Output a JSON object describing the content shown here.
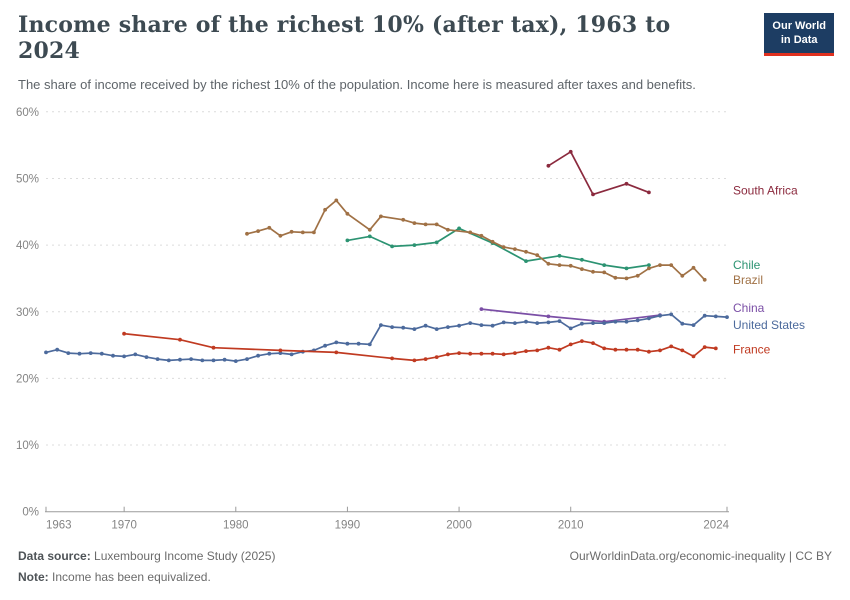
{
  "header": {
    "title": "Income share of the richest 10% (after tax), 1963 to 2024",
    "subtitle": "The share of income received by the richest 10% of the population. Income here is measured after taxes and benefits.",
    "logo": {
      "line1": "Our World",
      "line2": "in Data",
      "bg_color": "#1d3d63",
      "accent_color": "#e0311f"
    }
  },
  "chart_data": {
    "type": "line",
    "title": "Income share of the richest 10% (after tax), 1963 to 2024",
    "subtitle": "The share of income received by the richest 10% of the population. Income here is measured after taxes and benefits.",
    "xlabel": "",
    "ylabel": "",
    "xlim": [
      1963,
      2024
    ],
    "ylim": [
      0,
      60
    ],
    "grid": "horizontal-dashed",
    "legend_position": "right-end-labels",
    "x_ticks": [
      1963,
      1970,
      1980,
      1990,
      2000,
      2010,
      2024
    ],
    "y_ticks": [
      0,
      10,
      20,
      30,
      40,
      50,
      60
    ],
    "y_suffix": "%",
    "series": [
      {
        "name": "South Africa",
        "color": "#8b2a3e",
        "label_dy": -2,
        "points": [
          [
            2008,
            51.9
          ],
          [
            2010,
            54.0
          ],
          [
            2012,
            47.6
          ],
          [
            2015,
            49.2
          ],
          [
            2017,
            47.9
          ]
        ]
      },
      {
        "name": "Chile",
        "color": "#2c9372",
        "label_dy": 0,
        "points": [
          [
            1990,
            40.7
          ],
          [
            1992,
            41.3
          ],
          [
            1994,
            39.8
          ],
          [
            1996,
            40.0
          ],
          [
            1998,
            40.4
          ],
          [
            2000,
            42.5
          ],
          [
            2003,
            40.3
          ],
          [
            2006,
            37.6
          ],
          [
            2009,
            38.4
          ],
          [
            2011,
            37.8
          ],
          [
            2013,
            37.0
          ],
          [
            2015,
            36.5
          ],
          [
            2017,
            37.0
          ]
        ]
      },
      {
        "name": "Brazil",
        "color": "#a07145",
        "label_dy": 0,
        "points": [
          [
            1981,
            41.7
          ],
          [
            1982,
            42.1
          ],
          [
            1983,
            42.6
          ],
          [
            1984,
            41.4
          ],
          [
            1985,
            42.0
          ],
          [
            1986,
            41.9
          ],
          [
            1987,
            41.9
          ],
          [
            1988,
            45.3
          ],
          [
            1989,
            46.7
          ],
          [
            1990,
            44.7
          ],
          [
            1992,
            42.3
          ],
          [
            1993,
            44.3
          ],
          [
            1995,
            43.8
          ],
          [
            1996,
            43.3
          ],
          [
            1997,
            43.1
          ],
          [
            1998,
            43.1
          ],
          [
            1999,
            42.3
          ],
          [
            2001,
            41.9
          ],
          [
            2002,
            41.4
          ],
          [
            2003,
            40.5
          ],
          [
            2004,
            39.7
          ],
          [
            2005,
            39.4
          ],
          [
            2006,
            39.0
          ],
          [
            2007,
            38.5
          ],
          [
            2008,
            37.2
          ],
          [
            2009,
            37.0
          ],
          [
            2010,
            36.9
          ],
          [
            2011,
            36.4
          ],
          [
            2012,
            36.0
          ],
          [
            2013,
            35.9
          ],
          [
            2014,
            35.1
          ],
          [
            2015,
            35.0
          ],
          [
            2016,
            35.4
          ],
          [
            2017,
            36.5
          ],
          [
            2018,
            37.0
          ],
          [
            2019,
            37.0
          ],
          [
            2020,
            35.4
          ],
          [
            2021,
            36.6
          ],
          [
            2022,
            34.8
          ]
        ]
      },
      {
        "name": "China",
        "color": "#7b4fa6",
        "label_dy": -7,
        "points": [
          [
            2002,
            30.4
          ],
          [
            2008,
            29.3
          ],
          [
            2013,
            28.5
          ],
          [
            2018,
            29.5
          ]
        ]
      },
      {
        "name": "United States",
        "color": "#4c6a9c",
        "label_dy": 8,
        "points": [
          [
            1963,
            23.9
          ],
          [
            1964,
            24.3
          ],
          [
            1965,
            23.8
          ],
          [
            1966,
            23.7
          ],
          [
            1967,
            23.8
          ],
          [
            1968,
            23.7
          ],
          [
            1969,
            23.4
          ],
          [
            1970,
            23.3
          ],
          [
            1971,
            23.6
          ],
          [
            1972,
            23.2
          ],
          [
            1973,
            22.9
          ],
          [
            1974,
            22.7
          ],
          [
            1975,
            22.8
          ],
          [
            1976,
            22.9
          ],
          [
            1977,
            22.7
          ],
          [
            1978,
            22.7
          ],
          [
            1979,
            22.8
          ],
          [
            1980,
            22.6
          ],
          [
            1981,
            22.9
          ],
          [
            1982,
            23.4
          ],
          [
            1983,
            23.7
          ],
          [
            1984,
            23.8
          ],
          [
            1985,
            23.6
          ],
          [
            1986,
            24.0
          ],
          [
            1987,
            24.2
          ],
          [
            1988,
            24.9
          ],
          [
            1989,
            25.4
          ],
          [
            1990,
            25.2
          ],
          [
            1991,
            25.2
          ],
          [
            1992,
            25.1
          ],
          [
            1993,
            28.0
          ],
          [
            1994,
            27.7
          ],
          [
            1995,
            27.6
          ],
          [
            1996,
            27.4
          ],
          [
            1997,
            27.9
          ],
          [
            1998,
            27.4
          ],
          [
            1999,
            27.7
          ],
          [
            2000,
            27.9
          ],
          [
            2001,
            28.3
          ],
          [
            2002,
            28.0
          ],
          [
            2003,
            27.9
          ],
          [
            2004,
            28.4
          ],
          [
            2005,
            28.3
          ],
          [
            2006,
            28.5
          ],
          [
            2007,
            28.3
          ],
          [
            2008,
            28.4
          ],
          [
            2009,
            28.6
          ],
          [
            2010,
            27.5
          ],
          [
            2011,
            28.2
          ],
          [
            2012,
            28.3
          ],
          [
            2013,
            28.3
          ],
          [
            2014,
            28.5
          ],
          [
            2015,
            28.5
          ],
          [
            2016,
            28.7
          ],
          [
            2017,
            29.0
          ],
          [
            2018,
            29.4
          ],
          [
            2019,
            29.6
          ],
          [
            2020,
            28.2
          ],
          [
            2021,
            28.0
          ],
          [
            2022,
            29.4
          ],
          [
            2023,
            29.3
          ],
          [
            2024,
            29.2
          ]
        ]
      },
      {
        "name": "France",
        "color": "#c03a21",
        "label_dy": 1,
        "points": [
          [
            1970,
            26.7
          ],
          [
            1975,
            25.8
          ],
          [
            1978,
            24.6
          ],
          [
            1984,
            24.2
          ],
          [
            1989,
            23.9
          ],
          [
            1994,
            23.0
          ],
          [
            1996,
            22.7
          ],
          [
            1997,
            22.9
          ],
          [
            1998,
            23.2
          ],
          [
            1999,
            23.6
          ],
          [
            2000,
            23.8
          ],
          [
            2001,
            23.7
          ],
          [
            2002,
            23.7
          ],
          [
            2003,
            23.7
          ],
          [
            2004,
            23.6
          ],
          [
            2005,
            23.8
          ],
          [
            2006,
            24.1
          ],
          [
            2007,
            24.2
          ],
          [
            2008,
            24.6
          ],
          [
            2009,
            24.3
          ],
          [
            2010,
            25.1
          ],
          [
            2011,
            25.6
          ],
          [
            2012,
            25.3
          ],
          [
            2013,
            24.5
          ],
          [
            2014,
            24.3
          ],
          [
            2015,
            24.3
          ],
          [
            2016,
            24.3
          ],
          [
            2017,
            24.0
          ],
          [
            2018,
            24.2
          ],
          [
            2019,
            24.8
          ],
          [
            2020,
            24.2
          ],
          [
            2021,
            23.3
          ],
          [
            2022,
            24.7
          ],
          [
            2023,
            24.5
          ]
        ]
      }
    ]
  },
  "footer": {
    "source_label": "Data source:",
    "source_value": " Luxembourg Income Study (2025)",
    "note_label": "Note:",
    "note_value": " Income has been equivalized.",
    "credit": "OurWorldinData.org/economic-inequality | CC BY"
  }
}
